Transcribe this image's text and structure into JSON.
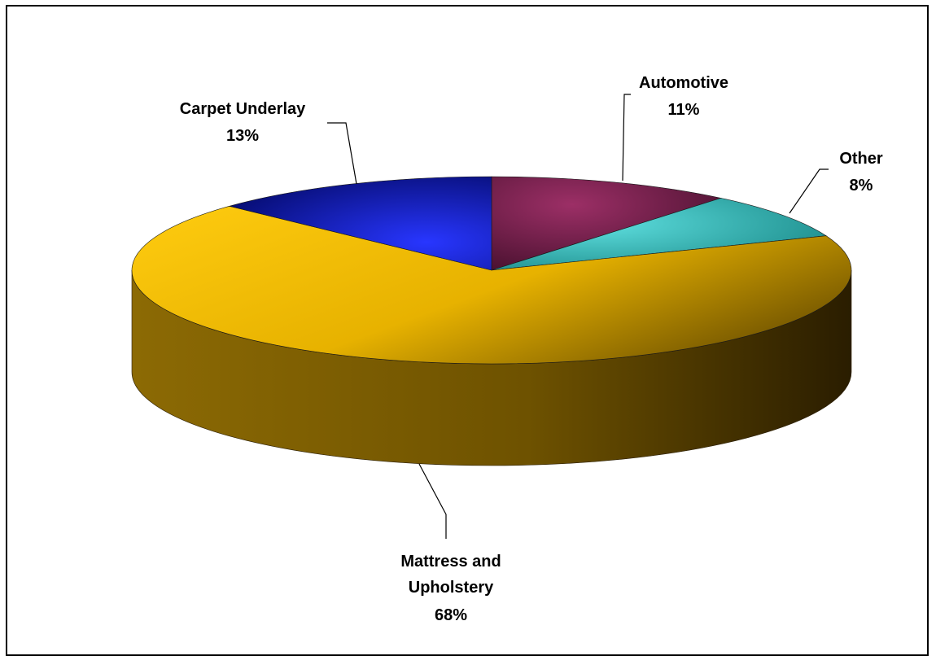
{
  "chart_data": {
    "type": "pie",
    "title": "",
    "slices": [
      {
        "label": "Automotive",
        "value": 11,
        "value_label": "11%",
        "color": "#7a2150"
      },
      {
        "label": "Other",
        "value": 8,
        "value_label": "8%",
        "color": "#33c3c3"
      },
      {
        "label": "Mattress and Upholstery",
        "value": 68,
        "value_label": "68%",
        "color": "#f5be00"
      },
      {
        "label": "Carpet Underlay",
        "value": 13,
        "value_label": "13%",
        "color": "#0f1ac8"
      }
    ],
    "style": "3d-exploded-pie",
    "legend": "none"
  }
}
